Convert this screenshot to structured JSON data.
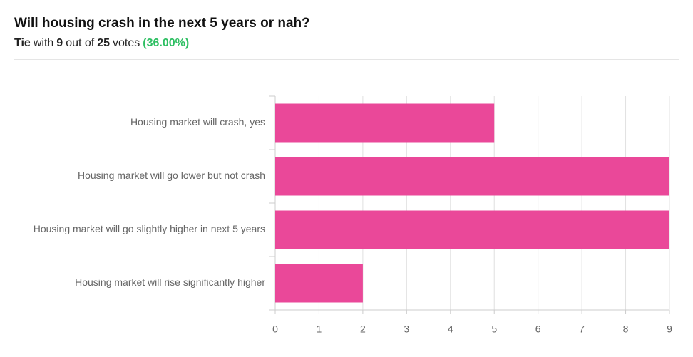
{
  "chart_data": {
    "type": "hbar",
    "title": "Will housing crash in the next 5 years or nah?",
    "subtitle": [
      "Tie",
      "with",
      "9",
      "out of",
      "25",
      "votes",
      "(36.00%)"
    ],
    "categories": [
      "Housing market will crash, yes",
      "Housing market will go lower but not crash",
      "Housing market will go slightly higher in next 5 years",
      "Housing market will rise significantly higher"
    ],
    "values": [
      5,
      9,
      9,
      2
    ],
    "color": "#ea4899",
    "xlim": [
      0,
      9
    ],
    "xticks": [
      0,
      1,
      2,
      3,
      4,
      5,
      6,
      7,
      8,
      9
    ],
    "grid": true
  }
}
